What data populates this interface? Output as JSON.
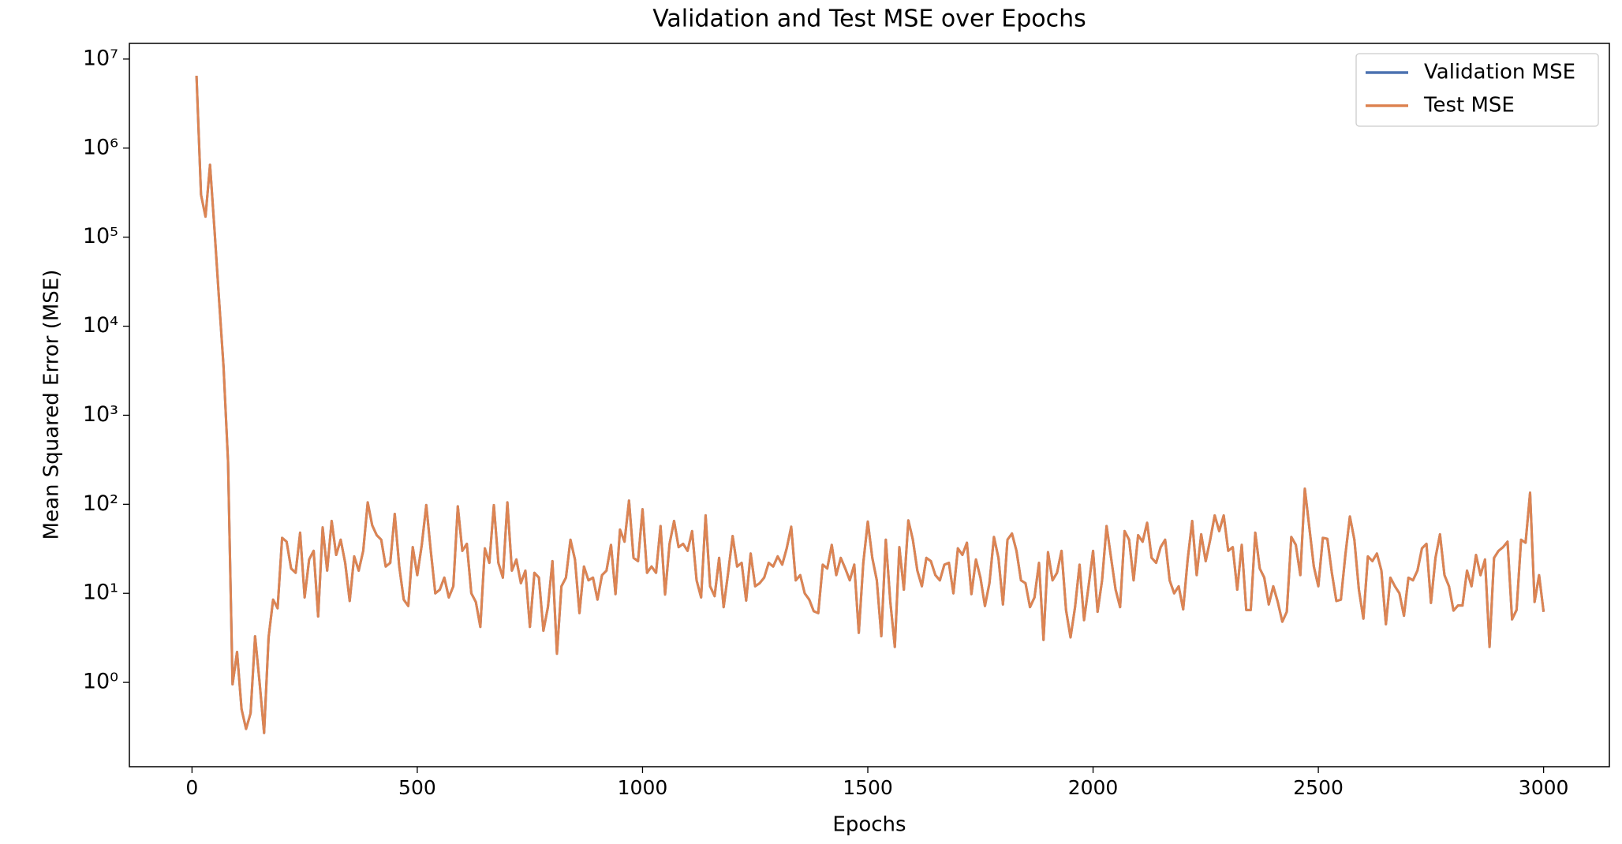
{
  "chart_data": {
    "type": "line",
    "title": "Validation and Test MSE over Epochs",
    "x_label": "Epochs",
    "y_label": "Mean Squared Error (MSE)",
    "log_y": true,
    "grid": false,
    "legend": "upper right",
    "xlim": [
      -139,
      3146
    ],
    "xticks": [
      0,
      500,
      1000,
      1500,
      2000,
      2500,
      3000
    ],
    "ylim": [
      0.113,
      15000000
    ],
    "yticks": [
      {
        "value": 1,
        "label": "10⁰"
      },
      {
        "value": 10,
        "label": "10¹"
      },
      {
        "value": 100,
        "label": "10²"
      },
      {
        "value": 1000,
        "label": "10³"
      },
      {
        "value": 10000,
        "label": "10⁴"
      },
      {
        "value": 100000,
        "label": "10⁵"
      },
      {
        "value": 1000000,
        "label": "10⁶"
      },
      {
        "value": 10000000,
        "label": "10⁷"
      }
    ],
    "x": [
      10,
      20,
      30,
      40,
      50,
      60,
      70,
      80,
      90,
      100,
      110,
      120,
      130,
      140,
      150,
      160,
      170,
      180,
      190,
      200,
      210,
      220,
      230,
      240,
      250,
      260,
      270,
      280,
      290,
      300,
      310,
      320,
      330,
      340,
      350,
      360,
      370,
      380,
      390,
      400,
      410,
      420,
      430,
      440,
      450,
      460,
      470,
      480,
      490,
      500,
      510,
      520,
      530,
      540,
      550,
      560,
      570,
      580,
      590,
      600,
      610,
      620,
      630,
      640,
      650,
      660,
      670,
      680,
      690,
      700,
      710,
      720,
      730,
      740,
      750,
      760,
      770,
      780,
      790,
      800,
      810,
      820,
      830,
      840,
      850,
      860,
      870,
      880,
      890,
      900,
      910,
      920,
      930,
      940,
      950,
      960,
      970,
      980,
      990,
      1000,
      1010,
      1020,
      1030,
      1040,
      1050,
      1060,
      1070,
      1080,
      1090,
      1100,
      1110,
      1120,
      1130,
      1140,
      1150,
      1160,
      1170,
      1180,
      1190,
      1200,
      1210,
      1220,
      1230,
      1240,
      1250,
      1260,
      1270,
      1280,
      1290,
      1300,
      1310,
      1320,
      1330,
      1340,
      1350,
      1360,
      1370,
      1380,
      1390,
      1400,
      1410,
      1420,
      1430,
      1440,
      1450,
      1460,
      1470,
      1480,
      1490,
      1500,
      1510,
      1520,
      1530,
      1540,
      1550,
      1560,
      1570,
      1580,
      1590,
      1600,
      1610,
      1620,
      1630,
      1640,
      1650,
      1660,
      1670,
      1680,
      1690,
      1700,
      1710,
      1720,
      1730,
      1740,
      1750,
      1760,
      1770,
      1780,
      1790,
      1800,
      1810,
      1820,
      1830,
      1840,
      1850,
      1860,
      1870,
      1880,
      1890,
      1900,
      1910,
      1920,
      1930,
      1940,
      1950,
      1960,
      1970,
      1980,
      1990,
      2000,
      2010,
      2020,
      2030,
      2040,
      2050,
      2060,
      2070,
      2080,
      2090,
      2100,
      2110,
      2120,
      2130,
      2140,
      2150,
      2160,
      2170,
      2180,
      2190,
      2200,
      2210,
      2220,
      2230,
      2240,
      2250,
      2260,
      2270,
      2280,
      2290,
      2300,
      2310,
      2320,
      2330,
      2340,
      2350,
      2360,
      2370,
      2380,
      2390,
      2400,
      2410,
      2420,
      2430,
      2440,
      2450,
      2460,
      2470,
      2480,
      2490,
      2500,
      2510,
      2520,
      2530,
      2540,
      2550,
      2560,
      2570,
      2580,
      2590,
      2600,
      2610,
      2620,
      2630,
      2640,
      2650,
      2660,
      2670,
      2680,
      2690,
      2700,
      2710,
      2720,
      2730,
      2740,
      2750,
      2760,
      2770,
      2780,
      2790,
      2800,
      2810,
      2820,
      2830,
      2840,
      2850,
      2860,
      2870,
      2880,
      2890,
      2900,
      2910,
      2920,
      2930,
      2940,
      2950,
      2960,
      2970,
      2980,
      2990,
      3000
    ],
    "series": [
      {
        "name": "Validation MSE",
        "color": "#4c72b0",
        "values": [
          6500000,
          300000,
          170000,
          650000,
          120000,
          20000,
          3500,
          300,
          0.95,
          2.2,
          0.5,
          0.3,
          0.45,
          3.3,
          1.0,
          0.27,
          3.2,
          8.5,
          6.8,
          42,
          38,
          19,
          17,
          48,
          9,
          24,
          30,
          5.5,
          55,
          18,
          65,
          27,
          40,
          22,
          8.2,
          26,
          18,
          30,
          105,
          58,
          45,
          40,
          20,
          22,
          78,
          20,
          8.5,
          7.2,
          33,
          16,
          35,
          98,
          30,
          10,
          11,
          15,
          9,
          12,
          95,
          30,
          36,
          10,
          8,
          4.2,
          32,
          22,
          98,
          22,
          15,
          105,
          18,
          24,
          13,
          18,
          4.2,
          17,
          15,
          3.8,
          7,
          23,
          2.1,
          12,
          15,
          40,
          24,
          6,
          20,
          14,
          15,
          8.5,
          16,
          18,
          35,
          9.8,
          52,
          38,
          110,
          25,
          23,
          88,
          17,
          20,
          17,
          57,
          9.7,
          36,
          65,
          33,
          36,
          30,
          50,
          14,
          9,
          75,
          12,
          9.3,
          25,
          7,
          17,
          44,
          20,
          22,
          8.3,
          28,
          12,
          13,
          15,
          22,
          20,
          26,
          21,
          32,
          56,
          14,
          16,
          10,
          8.5,
          6.3,
          6,
          21,
          19,
          35,
          16,
          25,
          19,
          14,
          21,
          3.6,
          22,
          64,
          25,
          14,
          3.3,
          40,
          8,
          2.5,
          33,
          11,
          66,
          40,
          18,
          12,
          25,
          23,
          16,
          14,
          21,
          22,
          10,
          32,
          27,
          37,
          9.8,
          24,
          15,
          7.2,
          13,
          43,
          25,
          7.5,
          40,
          47,
          30,
          14,
          13,
          7,
          9,
          22,
          3,
          29,
          14,
          17,
          30,
          6.5,
          3.2,
          7,
          21,
          5,
          12,
          30,
          6.2,
          14,
          57,
          25,
          11,
          7,
          50,
          40,
          14,
          45,
          38,
          62,
          25,
          22,
          33,
          40,
          14,
          10,
          12,
          6.6,
          24,
          65,
          16,
          46,
          23,
          40,
          75,
          50,
          75,
          30,
          33,
          11,
          35,
          6.5,
          6.5,
          48,
          19,
          15,
          7.5,
          12,
          8,
          4.8,
          6.2,
          43,
          35,
          16,
          150,
          55,
          20,
          12,
          42,
          41,
          17,
          8.2,
          8.5,
          27,
          73,
          40,
          11,
          5.2,
          26,
          23,
          28,
          18,
          4.5,
          15,
          12,
          10,
          5.6,
          15,
          14,
          18,
          32,
          36,
          7.8,
          25,
          46,
          16,
          12,
          6.4,
          7.3,
          7.3,
          18,
          12,
          27,
          16,
          24,
          2.5,
          25,
          30,
          33,
          38,
          5.1,
          6.5,
          40,
          37,
          135,
          8,
          16,
          6.2
        ]
      },
      {
        "name": "Test MSE",
        "color": "#dd8452",
        "values": [
          6500000,
          300000,
          170000,
          650000,
          120000,
          20000,
          3500,
          300,
          0.95,
          2.2,
          0.5,
          0.3,
          0.45,
          3.3,
          1.0,
          0.27,
          3.2,
          8.5,
          6.8,
          42,
          38,
          19,
          17,
          48,
          9,
          24,
          30,
          5.5,
          55,
          18,
          65,
          27,
          40,
          22,
          8.2,
          26,
          18,
          30,
          105,
          58,
          45,
          40,
          20,
          22,
          78,
          20,
          8.5,
          7.2,
          33,
          16,
          35,
          98,
          30,
          10,
          11,
          15,
          9,
          12,
          95,
          30,
          36,
          10,
          8,
          4.2,
          32,
          22,
          98,
          22,
          15,
          105,
          18,
          24,
          13,
          18,
          4.2,
          17,
          15,
          3.8,
          7,
          23,
          2.1,
          12,
          15,
          40,
          24,
          6,
          20,
          14,
          15,
          8.5,
          16,
          18,
          35,
          9.8,
          52,
          38,
          110,
          25,
          23,
          88,
          17,
          20,
          17,
          57,
          9.7,
          36,
          65,
          33,
          36,
          30,
          50,
          14,
          9,
          75,
          12,
          9.3,
          25,
          7,
          17,
          44,
          20,
          22,
          8.3,
          28,
          12,
          13,
          15,
          22,
          20,
          26,
          21,
          32,
          56,
          14,
          16,
          10,
          8.5,
          6.3,
          6,
          21,
          19,
          35,
          16,
          25,
          19,
          14,
          21,
          3.6,
          22,
          64,
          25,
          14,
          3.3,
          40,
          8,
          2.5,
          33,
          11,
          66,
          40,
          18,
          12,
          25,
          23,
          16,
          14,
          21,
          22,
          10,
          32,
          27,
          37,
          9.8,
          24,
          15,
          7.2,
          13,
          43,
          25,
          7.5,
          40,
          47,
          30,
          14,
          13,
          7,
          9,
          22,
          3,
          29,
          14,
          17,
          30,
          6.5,
          3.2,
          7,
          21,
          5,
          12,
          30,
          6.2,
          14,
          57,
          25,
          11,
          7,
          50,
          40,
          14,
          45,
          38,
          62,
          25,
          22,
          33,
          40,
          14,
          10,
          12,
          6.6,
          24,
          65,
          16,
          46,
          23,
          40,
          75,
          50,
          75,
          30,
          33,
          11,
          35,
          6.5,
          6.5,
          48,
          19,
          15,
          7.5,
          12,
          8,
          4.8,
          6.2,
          43,
          35,
          16,
          150,
          55,
          20,
          12,
          42,
          41,
          17,
          8.2,
          8.5,
          27,
          73,
          40,
          11,
          5.2,
          26,
          23,
          28,
          18,
          4.5,
          15,
          12,
          10,
          5.6,
          15,
          14,
          18,
          32,
          36,
          7.8,
          25,
          46,
          16,
          12,
          6.4,
          7.3,
          7.3,
          18,
          12,
          27,
          16,
          24,
          2.5,
          25,
          30,
          33,
          38,
          5.1,
          6.5,
          40,
          37,
          135,
          8,
          16,
          6.2
        ]
      }
    ]
  }
}
